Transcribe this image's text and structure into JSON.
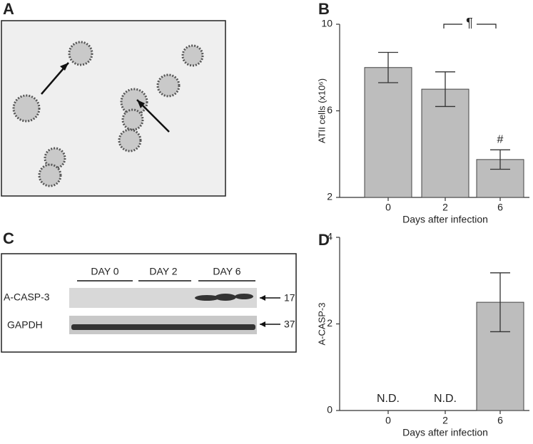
{
  "panels": {
    "a": "A",
    "b": "B",
    "c": "C",
    "d": "D"
  },
  "blot": {
    "days": [
      "DAY 0",
      "DAY 2",
      "DAY 6"
    ],
    "rows": [
      {
        "label": "A-CASP-3",
        "size": "17"
      },
      {
        "label": "GAPDH",
        "size": "37"
      }
    ]
  },
  "chart_data": [
    {
      "type": "bar",
      "ylabel": "ATII cells (x10⁶)",
      "xlabel": "Days after infection",
      "categories": [
        "0",
        "2",
        "6"
      ],
      "values": [
        8,
        7,
        3.75
      ],
      "errors": [
        0.7,
        0.8,
        0.45
      ],
      "color": "#bdbdbd",
      "ylim": [
        2,
        10
      ],
      "yticks": [
        2,
        6,
        10
      ],
      "bracket_label": "¶",
      "significance_label": "#"
    },
    {
      "type": "bar",
      "ylabel": "A-CASP-3",
      "xlabel": "Days after infection",
      "categories": [
        "0",
        "2",
        "6"
      ],
      "values": [
        null,
        null,
        2.5
      ],
      "errors": [
        null,
        null,
        0.68
      ],
      "color": "#bdbdbd",
      "ylim": [
        0,
        4
      ],
      "yticks": [
        0,
        2,
        4
      ],
      "not_detected_labels": [
        "N.D.",
        "N.D."
      ]
    }
  ]
}
